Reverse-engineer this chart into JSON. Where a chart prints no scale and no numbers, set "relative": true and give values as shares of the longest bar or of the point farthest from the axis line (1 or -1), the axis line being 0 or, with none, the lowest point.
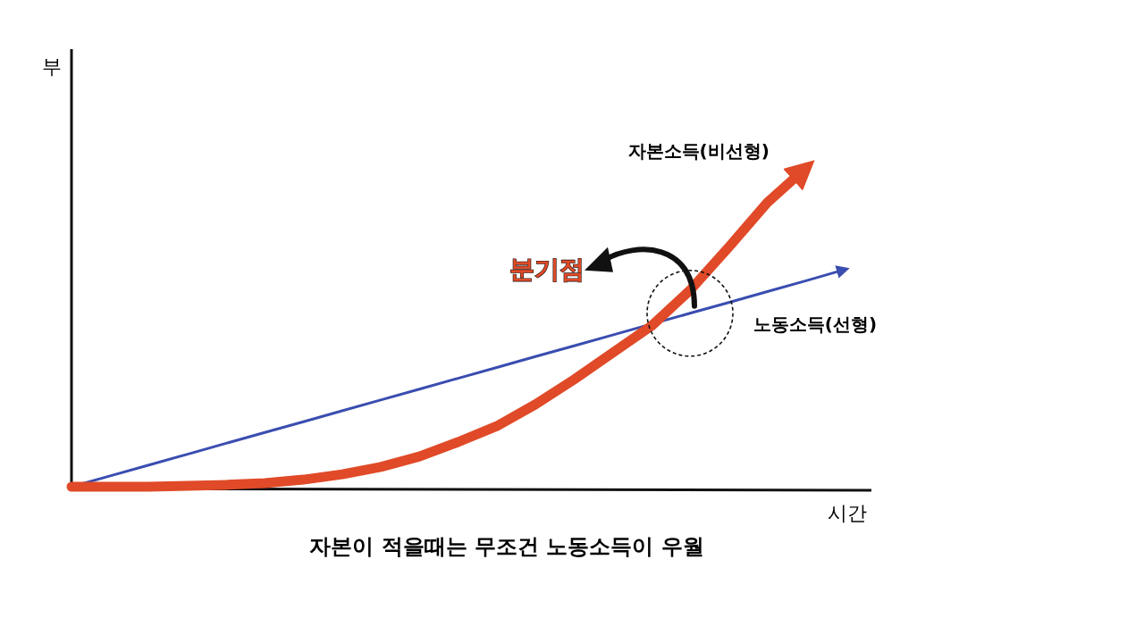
{
  "chart_data": {
    "type": "line",
    "relative": true,
    "title": "자본이 적을때는 무조건 노동소득이 우월",
    "xlabel": "시간",
    "ylabel": "부",
    "categories": [
      null,
      null,
      null,
      null,
      null,
      null,
      null,
      null,
      null,
      null,
      null,
      null,
      null,
      null,
      null,
      null,
      null,
      null,
      null,
      null,
      null
    ],
    "series": [
      {
        "name": "자본소득(비선형)",
        "color": "#e04a28",
        "values": [
          0,
          0,
          0,
          0.003,
          0.006,
          0.011,
          0.022,
          0.039,
          0.062,
          0.095,
          0.14,
          0.19,
          0.258,
          0.336,
          0.42,
          0.504,
          0.616,
          0.751,
          0.891,
          1.0,
          null
        ]
      },
      {
        "name": "노동소득(선형)",
        "color": "#3a4db0",
        "values": [
          0,
          0.034,
          0.068,
          0.102,
          0.136,
          0.17,
          0.204,
          0.238,
          0.272,
          0.306,
          0.34,
          0.374,
          0.408,
          0.442,
          0.476,
          0.51,
          0.544,
          0.578,
          0.612,
          0.646,
          0.681
        ]
      }
    ],
    "annotations": [
      "분기점"
    ]
  }
}
